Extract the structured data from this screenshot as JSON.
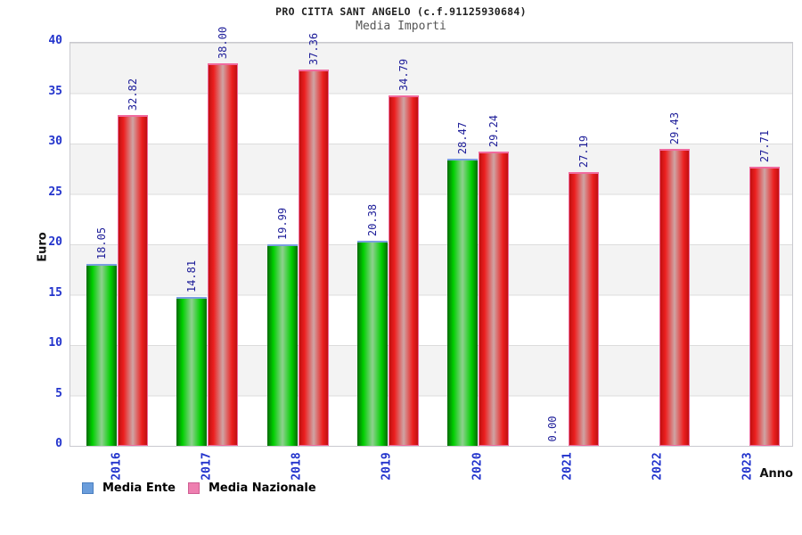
{
  "header": {
    "title": "PRO CITTA SANT ANGELO (c.f.91125930684)",
    "subtitle": "Media Importi"
  },
  "chart_data": {
    "type": "bar",
    "title": "PRO CITTA SANT ANGELO (c.f.91125930684)",
    "subtitle": "Media Importi",
    "categories": [
      "2016",
      "2017",
      "2018",
      "2019",
      "2020",
      "2021",
      "2022",
      "2023"
    ],
    "series": [
      {
        "name": "Media Ente",
        "values": [
          18.05,
          14.81,
          19.99,
          20.38,
          28.47,
          0.0,
          null,
          null
        ],
        "bar_color": "#00cc00",
        "bar_cap_color": "#7b9fe0",
        "legend_color": "#6a9ddb",
        "legend_border": "#4a7fc0"
      },
      {
        "name": "Media Nazionale",
        "values": [
          32.82,
          38.0,
          37.36,
          34.79,
          29.24,
          27.19,
          29.43,
          27.71
        ],
        "bar_color": "#ee2222",
        "bar_cap_color": "#f272a2",
        "legend_color": "#ee7fb0",
        "legend_border": "#cf5e93"
      }
    ],
    "xlabel": "Anno",
    "ylabel": "Euro",
    "ylim": [
      0,
      40
    ],
    "ytick_step": 5,
    "yticks": [
      0,
      5,
      10,
      15,
      20,
      25,
      30,
      35,
      40
    ],
    "value_label_color": "#20209a",
    "tick_label_color": "#2233cc",
    "grid": "horizontal gridlines with alternating gray/white bands",
    "legend_position": "bottom-left",
    "bar_value_labels": "rotated 90deg above bars, two decimals"
  }
}
